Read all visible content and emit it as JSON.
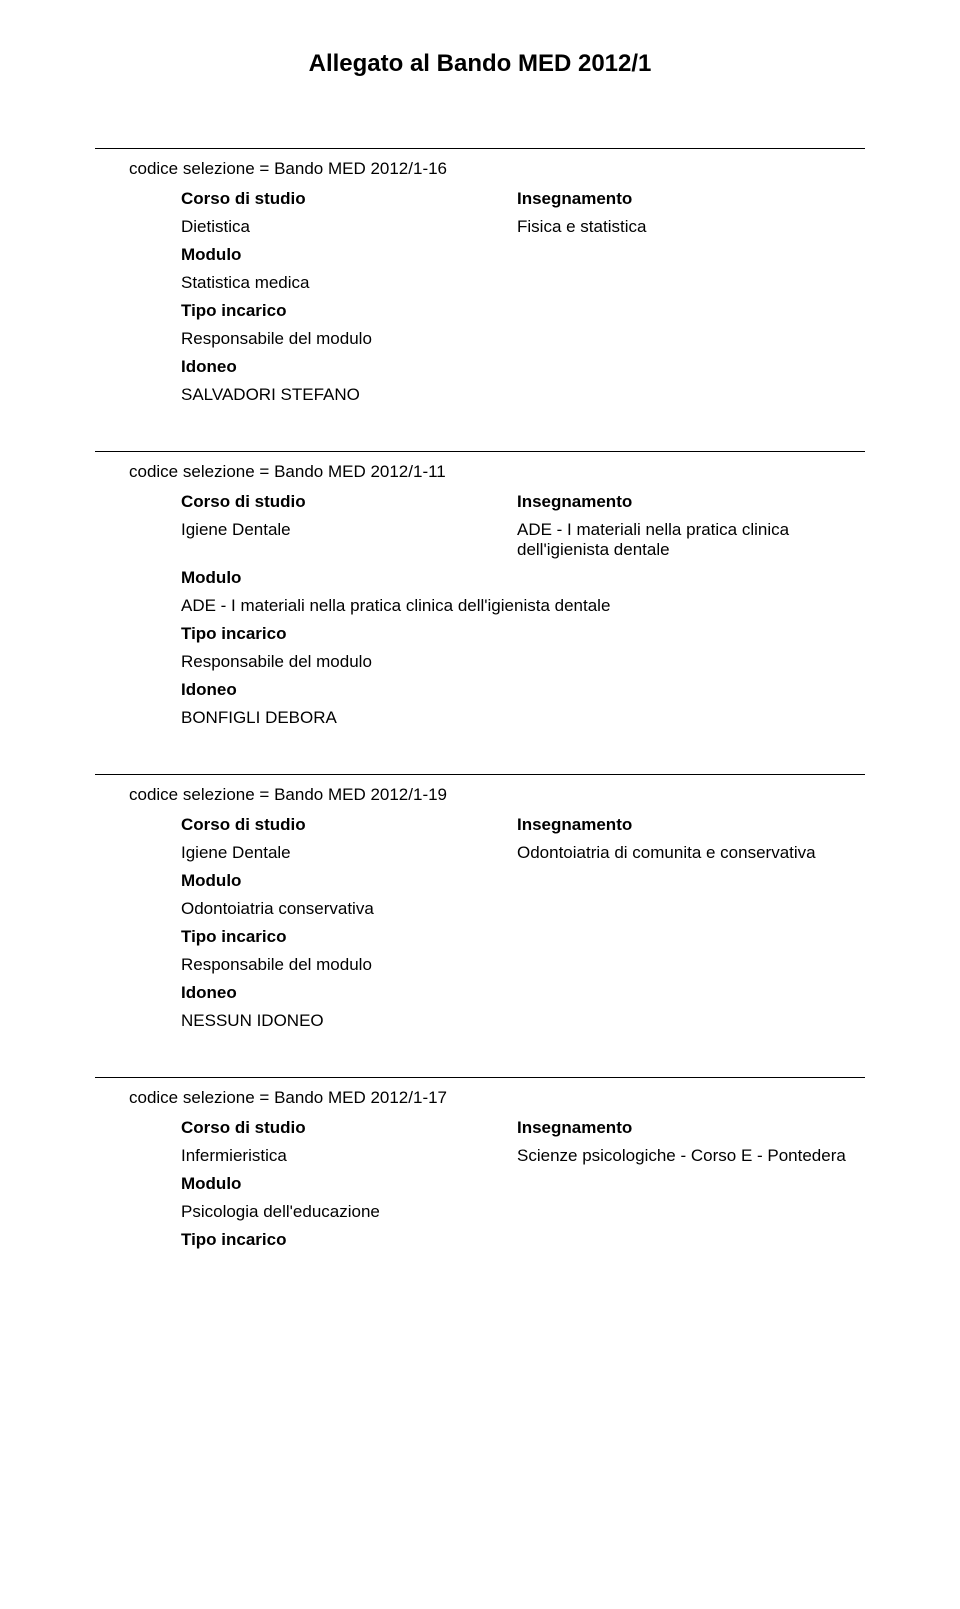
{
  "title": "Allegato al Bando MED 2012/1",
  "labels": {
    "corso": "Corso di studio",
    "insegnamento": "Insegnamento",
    "modulo": "Modulo",
    "tipo": "Tipo incarico",
    "idoneo": "Idoneo"
  },
  "sections": [
    {
      "codice": "codice selezione = Bando MED 2012/1-16",
      "corso": "Dietistica",
      "insegnamento": "Fisica e statistica",
      "modulo": "Statistica medica",
      "tipo": "Responsabile del modulo",
      "idoneo": "SALVADORI STEFANO"
    },
    {
      "codice": "codice selezione = Bando MED 2012/1-11",
      "corso": "Igiene Dentale",
      "insegnamento": "ADE - I materiali nella pratica clinica dell'igienista dentale",
      "modulo": "ADE - I materiali nella pratica clinica dell'igienista dentale",
      "tipo": "Responsabile del modulo",
      "idoneo": "BONFIGLI DEBORA"
    },
    {
      "codice": "codice selezione = Bando MED 2012/1-19",
      "corso": "Igiene Dentale",
      "insegnamento": "Odontoiatria di comunita e conservativa",
      "modulo": "Odontoiatria conservativa",
      "tipo": "Responsabile del modulo",
      "idoneo": "NESSUN IDONEO"
    },
    {
      "codice": "codice selezione = Bando MED 2012/1-17",
      "corso": "Infermieristica",
      "insegnamento": "Scienze psicologiche - Corso E - Pontedera",
      "modulo": "Psicologia dell'educazione",
      "tipo": "",
      "idoneo": ""
    }
  ]
}
